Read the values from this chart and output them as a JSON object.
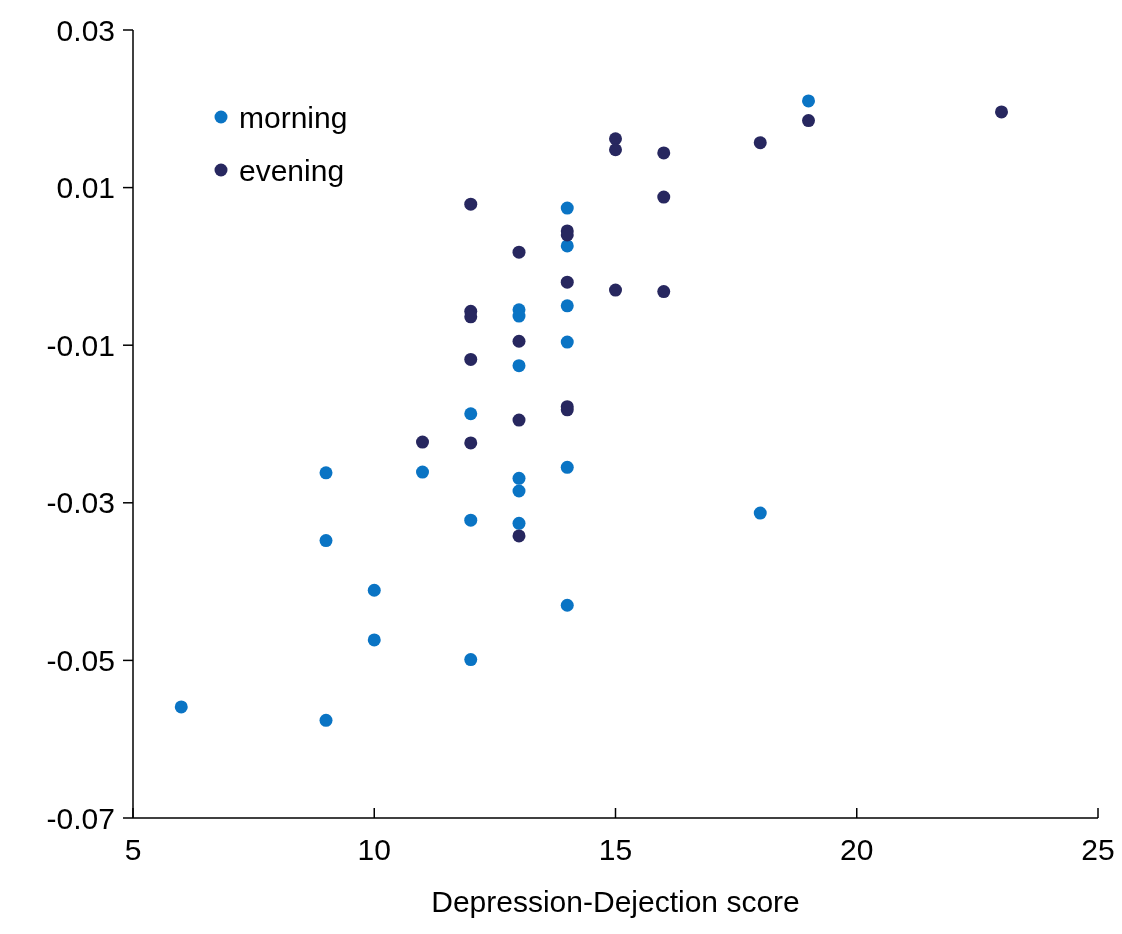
{
  "chart_data": {
    "type": "scatter",
    "xlabel": "Depression-Dejection score",
    "xlim": [
      5,
      25
    ],
    "xticks": [
      5,
      10,
      15,
      20,
      25
    ],
    "ylim": [
      -0.07,
      0.03
    ],
    "yticks": [
      -0.07,
      -0.05,
      -0.03,
      -0.01,
      0.01,
      0.03
    ],
    "grid": false,
    "legend": "top left",
    "marker": "circle",
    "series": [
      {
        "name": "morning",
        "color": "#0a74c4",
        "x": [
          6,
          9,
          9,
          9,
          10,
          10,
          11,
          12,
          12,
          12,
          13,
          13,
          13,
          13,
          13,
          13,
          14,
          14,
          14,
          14,
          14,
          14,
          18,
          19
        ],
        "values": [
          -0.0559,
          -0.0576,
          -0.0348,
          -0.0262,
          -0.0411,
          -0.0474,
          -0.0261,
          -0.0499,
          -0.0322,
          -0.0187,
          -0.0055,
          -0.0063,
          -0.0126,
          -0.0269,
          -0.0285,
          -0.0326,
          0.0074,
          0.0026,
          -0.005,
          -0.0096,
          -0.0255,
          -0.043,
          -0.0313,
          0.021
        ]
      },
      {
        "name": "evening",
        "color": "#27275f",
        "x": [
          11,
          12,
          12,
          12,
          12,
          12,
          13,
          13,
          13,
          13,
          14,
          14,
          14,
          14,
          14,
          15,
          15,
          15,
          16,
          16,
          16,
          18,
          19,
          23
        ],
        "values": [
          -0.0223,
          0.0079,
          -0.0057,
          -0.0064,
          -0.0118,
          -0.0224,
          0.0018,
          -0.0095,
          -0.0195,
          -0.0342,
          0.0045,
          0.004,
          -0.002,
          -0.0178,
          -0.0182,
          0.0162,
          0.0148,
          -0.003,
          0.0144,
          0.0088,
          -0.0032,
          0.0157,
          0.0185,
          0.0196
        ]
      }
    ]
  }
}
